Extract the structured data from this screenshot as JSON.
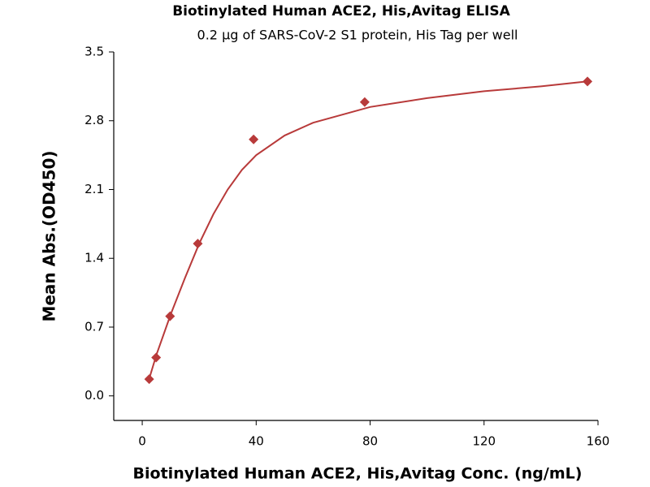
{
  "chart_data": {
    "type": "scatter",
    "title": "Biotinylated Human ACE2, His,Avitag ELISA",
    "subtitle": "0.2 µg of SARS-CoV-2 S1 protein, His Tag per well",
    "x_label": "Biotinylated Human ACE2, His,Avitag Conc. (ng/mL)",
    "y_label": "Mean Abs.(OD450)",
    "xlim": [
      -10,
      160
    ],
    "xticks": [
      0,
      40,
      80,
      120,
      160
    ],
    "ylim": [
      -0.25,
      3.5
    ],
    "yticks": [
      {
        "value": 0,
        "label": "0.0"
      },
      0.7,
      1.4,
      2.1,
      2.8,
      3.5
    ],
    "grid": false,
    "series": [
      {
        "color": "#b83a3a",
        "x": [
          2.44,
          4.88,
          9.77,
          19.5,
          39.1,
          78.1,
          156.3
        ],
        "values": [
          0.17,
          0.39,
          0.81,
          1.55,
          2.61,
          2.99,
          3.2
        ]
      }
    ],
    "curve": {
      "color": "#b83a3a",
      "x": [
        2.4,
        5,
        10,
        15,
        20,
        25,
        30,
        35,
        40,
        50,
        60,
        80,
        100,
        120,
        140,
        156
      ],
      "values": [
        0.17,
        0.42,
        0.83,
        1.2,
        1.55,
        1.85,
        2.1,
        2.3,
        2.45,
        2.65,
        2.78,
        2.94,
        3.03,
        3.1,
        3.15,
        3.2
      ]
    }
  }
}
